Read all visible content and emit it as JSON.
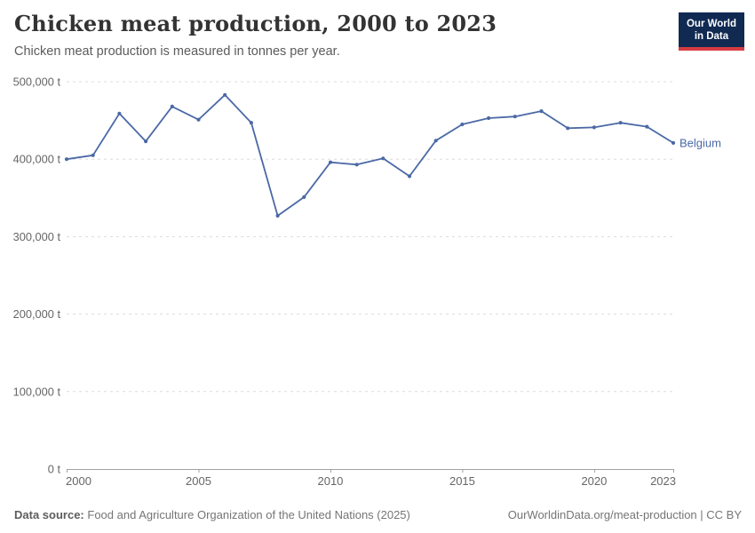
{
  "header": {
    "title": "Chicken meat production, 2000 to 2023",
    "subtitle": "Chicken meat production is measured in tonnes per year.",
    "logo": {
      "line1": "Our World",
      "line2": "in Data"
    }
  },
  "chart_data": {
    "type": "line",
    "title": "Chicken meat production, 2000 to 2023",
    "ylabel": "",
    "xlabel": "",
    "unit": "tonnes per year",
    "x": [
      2000,
      2001,
      2002,
      2003,
      2004,
      2005,
      2006,
      2007,
      2008,
      2009,
      2010,
      2011,
      2012,
      2013,
      2014,
      2015,
      2016,
      2017,
      2018,
      2019,
      2020,
      2021,
      2022,
      2023
    ],
    "series": [
      {
        "name": "Belgium",
        "color": "#4b69a5",
        "values": [
          400000,
          405000,
          459000,
          423000,
          468000,
          451000,
          483000,
          447000,
          327000,
          351000,
          396000,
          393000,
          401000,
          378000,
          424000,
          445000,
          453000,
          455000,
          462000,
          440000,
          441000,
          447000,
          442000,
          421000
        ]
      }
    ],
    "xlim": [
      2000,
      2023
    ],
    "ylim": [
      0,
      500000
    ],
    "xticks": [
      2000,
      2005,
      2010,
      2015,
      2020,
      2023
    ],
    "xtick_labels": [
      "2000",
      "2005",
      "2010",
      "2015",
      "2020",
      "2023"
    ],
    "yticks": [
      0,
      100000,
      200000,
      300000,
      400000,
      500000
    ],
    "ytick_labels": [
      "0 t",
      "100,000 t",
      "200,000 t",
      "300,000 t",
      "400,000 t",
      "500,000 t"
    ],
    "grid": "horizontal dashed",
    "legend_position": "line-end-label",
    "marker": "dot"
  },
  "footer": {
    "source_label": "Data source:",
    "source_text": "Food and Agriculture Organization of the United Nations (2025)",
    "link_text": "OurWorldinData.org/meat-production | CC BY"
  },
  "colors": {
    "series_blue": "#4b69a5",
    "brand_navy": "#102a52",
    "brand_red": "#d63c42",
    "gridline": "#dcdcdc",
    "axis": "#a1a1a1",
    "tick_text": "#666666"
  }
}
